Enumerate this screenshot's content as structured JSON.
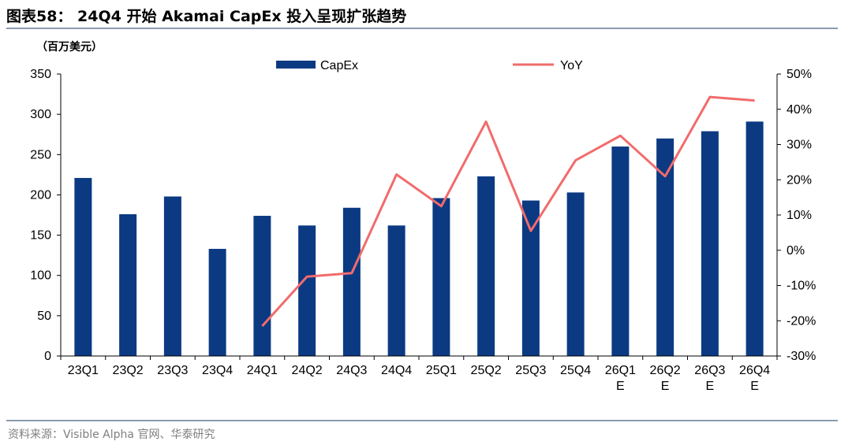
{
  "figure": {
    "title": "图表58： 24Q4 开始 Akamai CapEx 投入呈现扩张趋势",
    "source": "资料来源：Visible Alpha 官网、华泰研究"
  },
  "colors": {
    "bar": "#0b3a82",
    "line": "#f26b6b",
    "rule": "#8a9bb0"
  },
  "chart_data": {
    "type": "bar",
    "unit_label": "（百万美元）",
    "categories": [
      "23Q1",
      "23Q2",
      "23Q3",
      "23Q4",
      "24Q1",
      "24Q2",
      "24Q3",
      "24Q4",
      "25Q1",
      "25Q2",
      "25Q3",
      "25Q4",
      "26Q1 E",
      "26Q2 E",
      "26Q3 E",
      "26Q4 E"
    ],
    "category_lines": [
      [
        "23Q1"
      ],
      [
        "23Q2"
      ],
      [
        "23Q3"
      ],
      [
        "23Q4"
      ],
      [
        "24Q1"
      ],
      [
        "24Q2"
      ],
      [
        "24Q3"
      ],
      [
        "24Q4"
      ],
      [
        "25Q1"
      ],
      [
        "25Q2"
      ],
      [
        "25Q3"
      ],
      [
        "25Q4"
      ],
      [
        "26Q1",
        "E"
      ],
      [
        "26Q2",
        "E"
      ],
      [
        "26Q3",
        "E"
      ],
      [
        "26Q4",
        "E"
      ]
    ],
    "series": [
      {
        "name": "CapEx",
        "type": "bar",
        "axis": "left",
        "values": [
          221,
          176,
          198,
          133,
          174,
          162,
          184,
          162,
          196,
          223,
          193,
          203,
          260,
          270,
          279,
          291
        ]
      },
      {
        "name": "YoY",
        "type": "line",
        "axis": "right",
        "values": [
          null,
          null,
          null,
          null,
          -21.5,
          -7.5,
          -6.5,
          21.5,
          12.5,
          36.5,
          5.5,
          25.5,
          32.5,
          21.0,
          43.5,
          42.5
        ]
      }
    ],
    "y_left": {
      "min": 0,
      "max": 350,
      "ticks": [
        "0",
        "50",
        "100",
        "150",
        "200",
        "250",
        "300",
        "350"
      ]
    },
    "y_right": {
      "min": -30,
      "max": 50,
      "ticks": [
        "-30%",
        "-20%",
        "-10%",
        "0%",
        "10%",
        "20%",
        "30%",
        "40%",
        "50%"
      ]
    },
    "legend_placement": "top-center",
    "grid": false
  }
}
